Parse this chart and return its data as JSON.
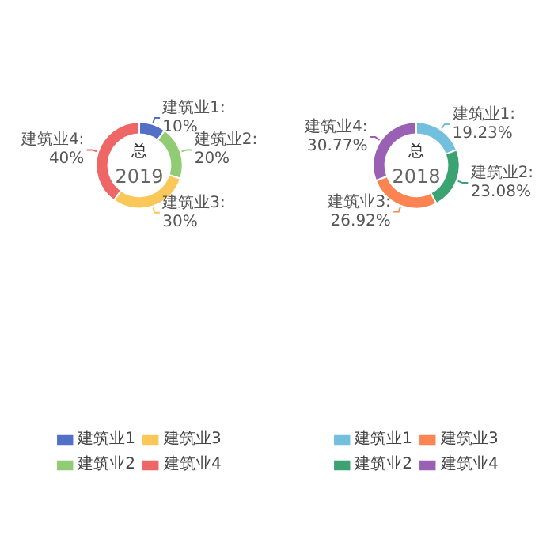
{
  "chart_data": [
    {
      "type": "donut",
      "title": "总",
      "subtitle": "2019",
      "categories": [
        "建筑业1",
        "建筑业2",
        "建筑业3",
        "建筑业4"
      ],
      "values": [
        10,
        20,
        30,
        40
      ],
      "colors": [
        "#5470c6",
        "#91cc75",
        "#fac858",
        "#ee6666"
      ],
      "value_labels": [
        "建筑业1: 10%",
        "建筑业2: 20%",
        "建筑业3: 30%",
        "建筑业4: 40%"
      ],
      "legend": "bottom"
    },
    {
      "type": "donut",
      "title": "总",
      "subtitle": "2018",
      "categories": [
        "建筑业1",
        "建筑业2",
        "建筑业3",
        "建筑业4"
      ],
      "values": [
        19.23,
        23.08,
        26.92,
        30.77
      ],
      "colors": [
        "#73c0de",
        "#3ba272",
        "#fc8452",
        "#9a60b4"
      ],
      "value_labels": [
        "建筑业1: 19.23%",
        "建筑业2: 23.08%",
        "建筑业3: 26.92%",
        "建筑业4: 30.77%"
      ],
      "legend": "bottom"
    }
  ]
}
